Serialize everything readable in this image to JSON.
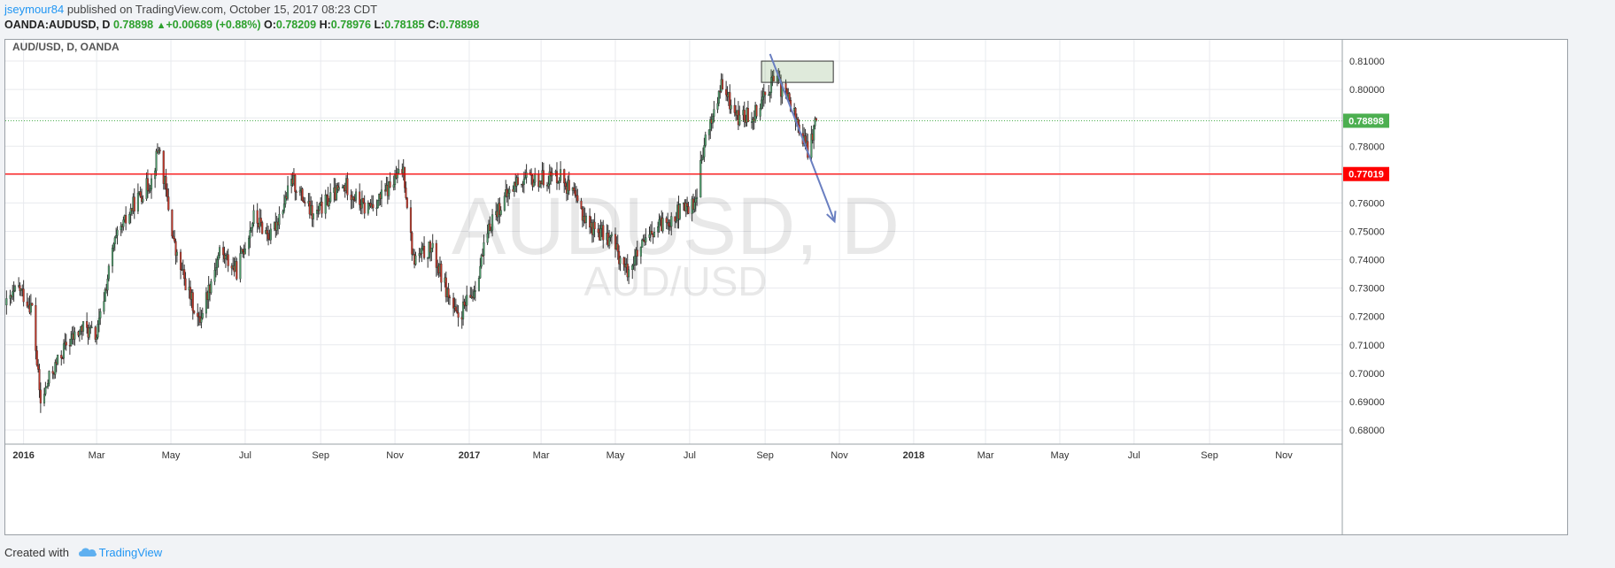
{
  "header": {
    "user": "jseymour84",
    "published_text": "published on TradingView.com, October 15, 2017 08:23 CDT",
    "symbol": "OANDA:AUDUSD, D",
    "last": "0.78898",
    "change": "+0.00689 (+0.88%)",
    "open_label": "O:",
    "open": "0.78209",
    "high_label": "H:",
    "high": "0.78976",
    "low_label": "L:",
    "low": "0.78185",
    "close_label": "C:",
    "close": "0.78898"
  },
  "footer": {
    "created_with": "Created with",
    "brand": "TradingView"
  },
  "chart_data": {
    "type": "candlestick",
    "title": "AUD/USD, D, OANDA",
    "watermark_main": "AUDUSD, D",
    "watermark_sub": "AUD/USD",
    "ylim": [
      0.675,
      0.8175
    ],
    "y_ticks": [
      "0.81000",
      "0.80000",
      "0.79000",
      "0.78000",
      "0.77000",
      "0.76000",
      "0.75000",
      "0.74000",
      "0.73000",
      "0.72000",
      "0.71000",
      "0.70000",
      "0.69000",
      "0.68000"
    ],
    "x_ticks": [
      {
        "label": "2016",
        "date": "2016-01-01",
        "bold": true
      },
      {
        "label": "Mar",
        "date": "2016-03-01"
      },
      {
        "label": "May",
        "date": "2016-05-01"
      },
      {
        "label": "Jul",
        "date": "2016-07-01"
      },
      {
        "label": "Sep",
        "date": "2016-09-01"
      },
      {
        "label": "Nov",
        "date": "2016-11-01"
      },
      {
        "label": "2017",
        "date": "2017-01-01",
        "bold": true
      },
      {
        "label": "Mar",
        "date": "2017-03-01"
      },
      {
        "label": "May",
        "date": "2017-05-01"
      },
      {
        "label": "Jul",
        "date": "2017-07-01"
      },
      {
        "label": "Sep",
        "date": "2017-09-01"
      },
      {
        "label": "Nov",
        "date": "2017-11-01"
      },
      {
        "label": "2018",
        "date": "2018-01-01",
        "bold": true
      },
      {
        "label": "Mar",
        "date": "2018-03-01"
      },
      {
        "label": "May",
        "date": "2018-05-01"
      },
      {
        "label": "Jul",
        "date": "2018-07-01"
      },
      {
        "label": "Sep",
        "date": "2018-09-01"
      },
      {
        "label": "Nov",
        "date": "2018-11-01"
      }
    ],
    "x_range": [
      "2015-12-17",
      "2018-12-19"
    ],
    "anchors": [
      {
        "date": "2015-12-18",
        "price": 0.724
      },
      {
        "date": "2015-12-28",
        "price": 0.73
      },
      {
        "date": "2016-01-08",
        "price": 0.723
      },
      {
        "date": "2016-01-15",
        "price": 0.689
      },
      {
        "date": "2016-01-22",
        "price": 0.698
      },
      {
        "date": "2016-02-05",
        "price": 0.71
      },
      {
        "date": "2016-02-19",
        "price": 0.716
      },
      {
        "date": "2016-03-01",
        "price": 0.713
      },
      {
        "date": "2016-03-15",
        "price": 0.745
      },
      {
        "date": "2016-04-01",
        "price": 0.76
      },
      {
        "date": "2016-04-15",
        "price": 0.768
      },
      {
        "date": "2016-04-21",
        "price": 0.78
      },
      {
        "date": "2016-05-05",
        "price": 0.742
      },
      {
        "date": "2016-05-24",
        "price": 0.718
      },
      {
        "date": "2016-06-10",
        "price": 0.743
      },
      {
        "date": "2016-06-24",
        "price": 0.736
      },
      {
        "date": "2016-07-08",
        "price": 0.755
      },
      {
        "date": "2016-07-22",
        "price": 0.748
      },
      {
        "date": "2016-08-09",
        "price": 0.768
      },
      {
        "date": "2016-08-26",
        "price": 0.755
      },
      {
        "date": "2016-09-09",
        "price": 0.762
      },
      {
        "date": "2016-09-22",
        "price": 0.766
      },
      {
        "date": "2016-10-07",
        "price": 0.758
      },
      {
        "date": "2016-10-21",
        "price": 0.762
      },
      {
        "date": "2016-11-08",
        "price": 0.772
      },
      {
        "date": "2016-11-16",
        "price": 0.74
      },
      {
        "date": "2016-12-01",
        "price": 0.744
      },
      {
        "date": "2016-12-22",
        "price": 0.719
      },
      {
        "date": "2017-01-04",
        "price": 0.728
      },
      {
        "date": "2017-01-20",
        "price": 0.755
      },
      {
        "date": "2017-02-10",
        "price": 0.768
      },
      {
        "date": "2017-02-24",
        "price": 0.768
      },
      {
        "date": "2017-03-17",
        "price": 0.77
      },
      {
        "date": "2017-04-10",
        "price": 0.752
      },
      {
        "date": "2017-04-28",
        "price": 0.747
      },
      {
        "date": "2017-05-10",
        "price": 0.736
      },
      {
        "date": "2017-05-26",
        "price": 0.746
      },
      {
        "date": "2017-06-09",
        "price": 0.753
      },
      {
        "date": "2017-06-23",
        "price": 0.757
      },
      {
        "date": "2017-07-05",
        "price": 0.76
      },
      {
        "date": "2017-07-14",
        "price": 0.782
      },
      {
        "date": "2017-07-27",
        "price": 0.801
      },
      {
        "date": "2017-08-10",
        "price": 0.79
      },
      {
        "date": "2017-08-22",
        "price": 0.791
      },
      {
        "date": "2017-09-08",
        "price": 0.804
      },
      {
        "date": "2017-09-20",
        "price": 0.797
      },
      {
        "date": "2017-10-06",
        "price": 0.778
      },
      {
        "date": "2017-10-13",
        "price": 0.789
      }
    ],
    "current_price": {
      "value": 0.78898,
      "label": "0.78898",
      "color": "#4caf50"
    },
    "horizontal_line": {
      "value": 0.77019,
      "label": "0.77019",
      "color": "#ff0000"
    },
    "resistance_box": {
      "date_start": "2017-08-29",
      "date_end": "2017-10-27",
      "price_top": 0.81,
      "price_bottom": 0.8025
    },
    "forecast_arrow": {
      "date_start": "2017-09-05",
      "price_start": 0.8125,
      "date_end": "2017-10-28",
      "price_end": 0.7535,
      "color": "#6a7fc1"
    },
    "colors": {
      "up": "#4f9a6b",
      "down": "#c0392b",
      "wick": "#333333",
      "grid": "#e8eaee"
    }
  }
}
